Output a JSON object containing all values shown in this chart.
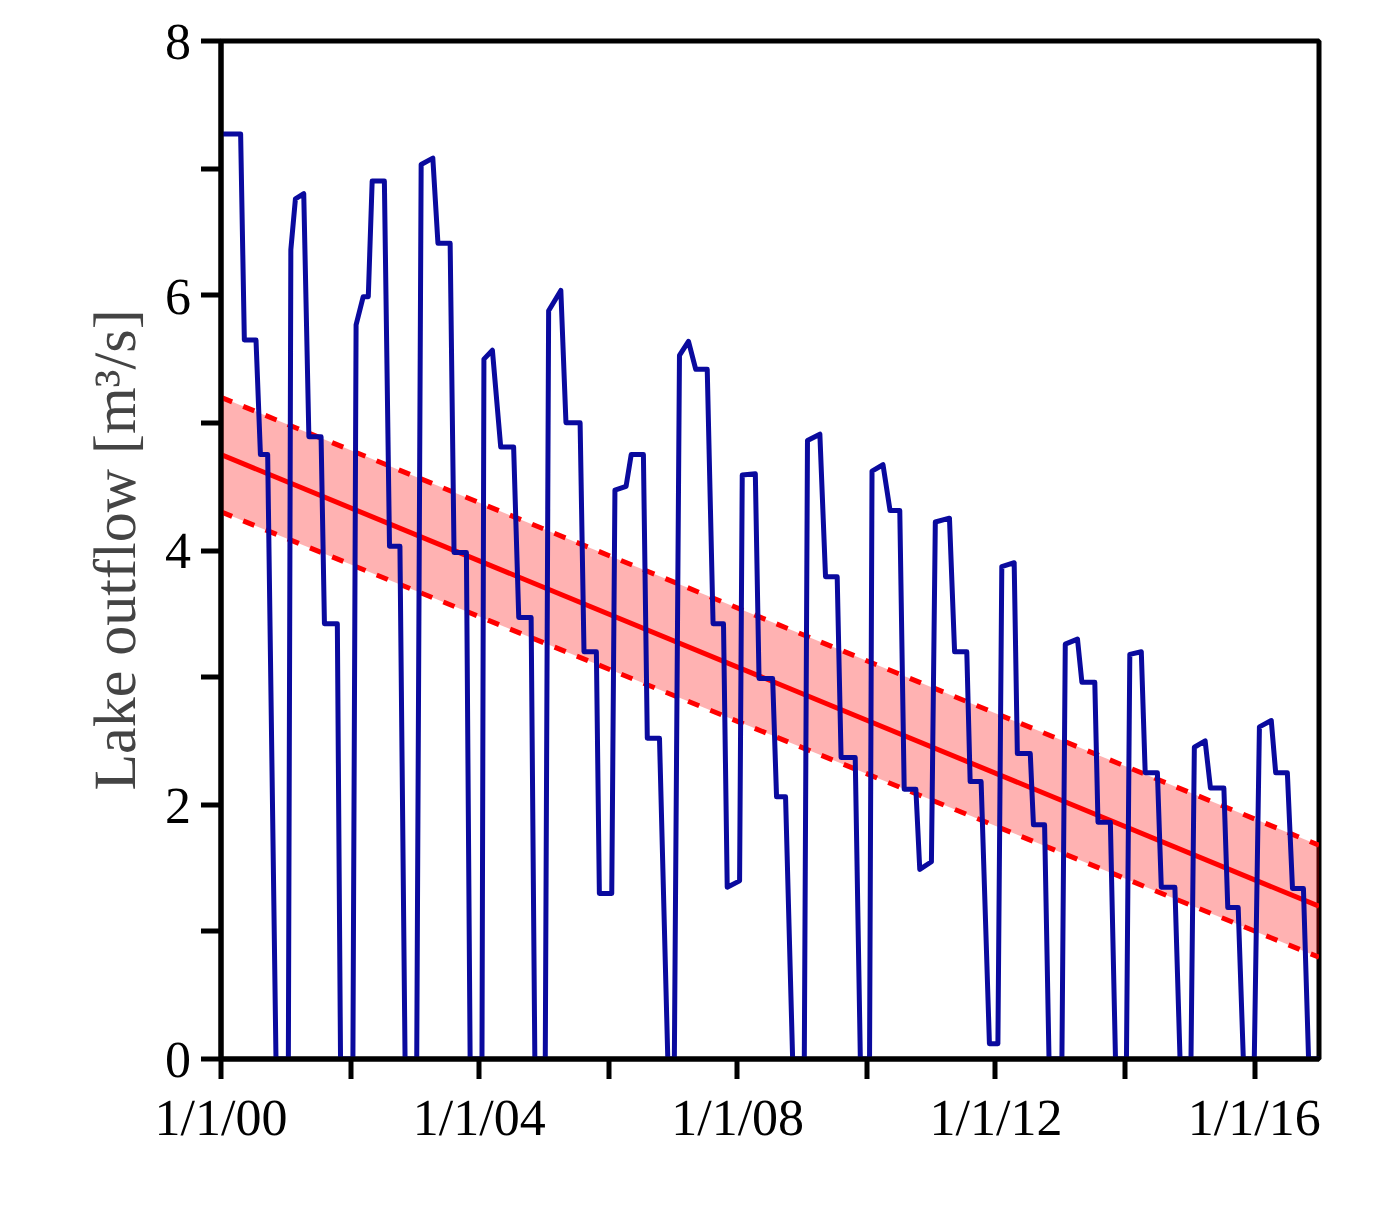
{
  "chart_data": {
    "type": "line",
    "ylabel": "Lake outflow [m³/s]",
    "xlim": [
      "2000-01-01",
      "2017-01-01"
    ],
    "ylim": [
      0,
      8
    ],
    "xticks": [
      {
        "value": "2000-01-01",
        "label": "1/1/00"
      },
      {
        "value": "2002-01-01",
        "label": null
      },
      {
        "value": "2004-01-01",
        "label": "1/1/04"
      },
      {
        "value": "2006-01-01",
        "label": null
      },
      {
        "value": "2008-01-01",
        "label": "1/1/08"
      },
      {
        "value": "2010-01-01",
        "label": null
      },
      {
        "value": "2012-01-01",
        "label": "1/1/12"
      },
      {
        "value": "2014-01-01",
        "label": null
      },
      {
        "value": "2016-01-01",
        "label": "1/1/16"
      }
    ],
    "yticks": [
      0,
      {
        "value": 1,
        "label": null
      },
      2,
      {
        "value": 3,
        "label": null
      },
      4,
      {
        "value": 5,
        "label": null
      },
      6,
      {
        "value": 7,
        "label": null
      },
      8
    ],
    "grid": false,
    "marker": "none",
    "line_style": "solid",
    "series": [
      {
        "color": "#0a0a9e",
        "x": [
          "2000-01-01",
          "2000-04-21",
          "2000-05-12",
          "2000-07-17",
          "2000-08-11",
          "2000-09-21",
          "2000-11-07",
          "2001-01-16",
          "2001-01-30",
          "2001-02-25",
          "2001-04-13",
          "2001-05-12",
          "2001-07-20",
          "2001-08-08",
          "2001-10-20",
          "2001-11-07",
          "2002-01-16",
          "2002-02-03",
          "2002-03-15",
          "2002-04-13",
          "2002-05-05",
          "2002-07-13",
          "2002-08-11",
          "2002-10-09",
          "2002-11-07",
          "2003-01-12",
          "2003-02-06",
          "2003-04-13",
          "2003-05-12",
          "2003-07-20",
          "2003-08-11",
          "2003-10-20",
          "2003-11-10",
          "2004-01-16",
          "2004-01-27",
          "2004-03-15",
          "2004-05-01",
          "2004-07-13",
          "2004-08-11",
          "2004-10-20",
          "2004-11-10",
          "2005-01-08",
          "2005-01-27",
          "2005-04-06",
          "2005-05-05",
          "2005-07-24",
          "2005-08-15",
          "2005-10-24",
          "2005-11-10",
          "2006-01-19",
          "2006-02-06",
          "2006-04-10",
          "2006-05-09",
          "2006-07-17",
          "2006-08-08",
          "2006-10-16",
          "2006-12-02",
          "2007-01-08",
          "2007-02-06",
          "2007-03-29",
          "2007-05-09",
          "2007-07-13",
          "2007-08-15",
          "2007-10-13",
          "2007-11-03",
          "2008-01-12",
          "2008-01-27",
          "2008-04-10",
          "2008-05-01",
          "2008-07-17",
          "2008-08-08",
          "2008-09-28",
          "2008-11-07",
          "2009-01-12",
          "2009-01-30",
          "2009-04-10",
          "2009-05-12",
          "2009-07-17",
          "2009-08-08",
          "2009-10-27",
          "2009-11-25",
          "2010-01-16",
          "2010-01-30",
          "2010-04-02",
          "2010-05-12",
          "2010-07-06",
          "2010-07-31",
          "2010-10-05",
          "2010-10-27",
          "2011-01-01",
          "2011-01-23",
          "2011-04-13",
          "2011-05-12",
          "2011-07-20",
          "2011-08-08",
          "2011-10-09",
          "2011-11-25",
          "2012-01-12",
          "2012-02-03",
          "2012-04-13",
          "2012-05-01",
          "2012-07-13",
          "2012-07-31",
          "2012-10-02",
          "2012-10-27",
          "2013-01-08",
          "2013-01-27",
          "2013-04-06",
          "2013-05-01",
          "2013-07-13",
          "2013-07-31",
          "2013-10-09",
          "2013-11-07",
          "2014-01-08",
          "2014-01-27",
          "2014-04-02",
          "2014-04-24",
          "2014-07-02",
          "2014-07-24",
          "2014-10-09",
          "2014-11-07",
          "2015-01-08",
          "2015-01-27",
          "2015-03-29",
          "2015-04-28",
          "2015-07-13",
          "2015-08-04",
          "2015-10-02",
          "2015-10-31",
          "2016-01-01",
          "2016-01-30",
          "2016-04-06",
          "2016-05-01",
          "2016-07-06",
          "2016-08-04",
          "2016-10-05",
          "2016-11-03",
          "2017-01-01"
        ],
        "values": [
          7.27,
          7.27,
          5.65,
          5.65,
          4.75,
          4.75,
          0,
          0,
          6.36,
          6.76,
          6.8,
          4.89,
          4.89,
          3.42,
          3.42,
          0,
          0,
          5.77,
          5.99,
          5.99,
          6.9,
          6.9,
          4.03,
          4.03,
          0,
          0,
          7.03,
          7.08,
          6.41,
          6.41,
          3.98,
          3.98,
          0,
          0,
          5.5,
          5.57,
          4.81,
          4.81,
          3.47,
          3.47,
          0,
          0,
          5.88,
          6.04,
          5.0,
          5.0,
          3.2,
          3.2,
          1.3,
          1.3,
          4.47,
          4.5,
          4.75,
          4.75,
          2.52,
          2.52,
          0,
          0,
          5.53,
          5.64,
          5.42,
          5.42,
          3.42,
          3.42,
          1.35,
          1.4,
          4.59,
          4.6,
          2.99,
          2.99,
          2.06,
          2.06,
          0,
          0,
          4.86,
          4.91,
          3.79,
          3.79,
          2.37,
          2.37,
          0,
          0,
          4.62,
          4.67,
          4.31,
          4.31,
          2.12,
          2.12,
          1.49,
          1.55,
          4.22,
          4.25,
          3.2,
          3.2,
          2.18,
          2.18,
          0.12,
          0.12,
          3.87,
          3.9,
          2.4,
          2.4,
          1.84,
          1.84,
          0,
          0,
          3.26,
          3.3,
          2.96,
          2.96,
          1.86,
          1.86,
          0,
          0,
          3.18,
          3.2,
          2.25,
          2.25,
          1.35,
          1.35,
          0,
          0,
          2.45,
          2.5,
          2.13,
          2.13,
          1.19,
          1.19,
          0,
          0,
          2.61,
          2.66,
          2.25,
          2.25,
          1.34,
          1.34,
          0,
          0
        ]
      },
      {
        "color": "#ff0000",
        "x": [
          "2000-01-01",
          "2017-01-01"
        ],
        "values": [
          4.75,
          1.2
        ],
        "lower": [
          4.3,
          0.8
        ],
        "upper": [
          5.2,
          1.68
        ]
      }
    ]
  }
}
